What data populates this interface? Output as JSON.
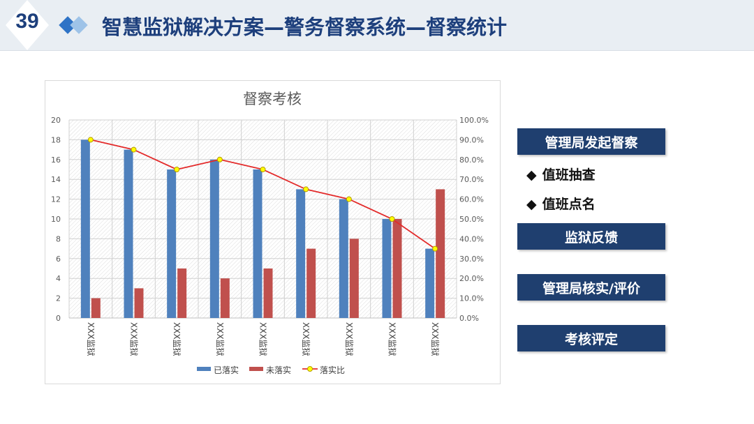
{
  "header": {
    "page_number": "39",
    "title": "智慧监狱解决方案—警务督察系统—督察统计"
  },
  "side": {
    "btn1": "管理局发起督察",
    "bullet1": "值班抽查",
    "bullet2": "值班点名",
    "bullet_mark": "◆",
    "btn2": "监狱反馈",
    "btn3": "管理局核实/评价",
    "btn4": "考核评定"
  },
  "colors": {
    "header_bg": "#e9eef3",
    "title": "#1d3f7c",
    "button_bg": "#1f3f6f",
    "series_done": "#4f81bd",
    "series_undone": "#c0504d",
    "ratio_line": "#e32b2b",
    "ratio_marker": "#ffff00"
  },
  "chart_data": {
    "type": "bar",
    "title": "督察考核",
    "categories": [
      "XXX监狱",
      "XXX监狱",
      "XXX监狱",
      "XXX监狱",
      "XXX监狱",
      "XXX监狱",
      "XXX监狱",
      "XXX监狱",
      "XXX监狱"
    ],
    "series": [
      {
        "name": "已落实",
        "type": "bar",
        "axis": "left",
        "values": [
          18,
          17,
          15,
          16,
          15,
          13,
          12,
          10,
          7
        ]
      },
      {
        "name": "未落实",
        "type": "bar",
        "axis": "left",
        "values": [
          2,
          3,
          5,
          4,
          5,
          7,
          8,
          10,
          13
        ]
      },
      {
        "name": "落实比",
        "type": "line",
        "axis": "right",
        "values": [
          0.9,
          0.85,
          0.75,
          0.8,
          0.75,
          0.65,
          0.6,
          0.5,
          0.35
        ]
      }
    ],
    "ylim": [
      0,
      20
    ],
    "yticks": [
      "0",
      "2",
      "4",
      "6",
      "8",
      "10",
      "12",
      "14",
      "16",
      "18",
      "20"
    ],
    "y2lim": [
      0,
      1
    ],
    "y2ticks": [
      "0.0%",
      "10.0%",
      "20.0%",
      "30.0%",
      "40.0%",
      "50.0%",
      "60.0%",
      "70.0%",
      "80.0%",
      "90.0%",
      "100.0%"
    ],
    "grid": true,
    "legend": "bottom"
  }
}
